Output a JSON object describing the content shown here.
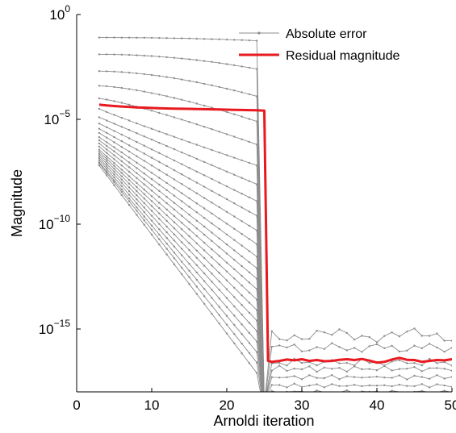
{
  "chart_data": {
    "type": "line",
    "title": "",
    "xlabel": "Arnoldi iteration",
    "ylabel": "Magnitude",
    "x_scale": "linear",
    "y_scale": "log",
    "xlim": [
      0,
      50
    ],
    "ylim": [
      1e-18,
      1
    ],
    "x_ticks": [
      0,
      10,
      20,
      30,
      40,
      50
    ],
    "x_tick_labels": [
      "0",
      "10",
      "20",
      "30",
      "40",
      "50"
    ],
    "y_ticks": [
      1e-15,
      1e-10,
      1e-05,
      1
    ],
    "y_tick_labels": [
      {
        "base": "10",
        "exponent": "−15"
      },
      {
        "base": "10",
        "exponent": "−10"
      },
      {
        "base": "10",
        "exponent": "−5"
      },
      {
        "base": "10",
        "exponent": "0"
      }
    ],
    "grid": false,
    "legend": {
      "position": "top-right",
      "entries": [
        {
          "label": "Absolute error",
          "color": "#8c8c8c",
          "marker": "dot"
        },
        {
          "label": "Residual magnitude",
          "color": "#e8191f",
          "marker": "none"
        }
      ]
    },
    "series": [
      {
        "name": "Residual magnitude",
        "color": "#e8191f",
        "x": [
          3,
          4,
          5,
          6,
          7,
          8,
          9,
          10,
          11,
          12,
          13,
          14,
          15,
          16,
          17,
          18,
          19,
          20,
          21,
          22,
          23,
          24,
          25,
          25.5,
          26,
          27,
          28,
          29,
          30,
          31,
          32,
          33,
          34,
          35,
          36,
          37,
          38,
          39,
          40,
          41,
          42,
          43,
          44,
          45,
          46,
          47,
          48,
          49,
          50
        ],
        "y": [
          5e-05,
          4.6e-05,
          4.3e-05,
          4.1e-05,
          3.9e-05,
          3.7e-05,
          3.6e-05,
          3.5e-05,
          3.4e-05,
          3.3e-05,
          3.25e-05,
          3.2e-05,
          3.15e-05,
          3.1e-05,
          3.05e-05,
          3e-05,
          2.95e-05,
          2.9e-05,
          2.85e-05,
          2.8e-05,
          2.75e-05,
          2.7e-05,
          2.6e-05,
          3e-17,
          2.7e-17,
          3e-17,
          3.5e-17,
          3.2e-17,
          3.6e-17,
          3e-17,
          3.3e-17,
          2.9e-17,
          3e-17,
          3.4e-17,
          3.6e-17,
          3.3e-17,
          3.7e-17,
          3.1e-17,
          2.5e-17,
          2.7e-17,
          3.5e-17,
          4.2e-17,
          3.4e-17,
          3.3e-17,
          2.7e-17,
          3e-17,
          3.3e-17,
          3.2e-17,
          3.6e-17
        ]
      }
    ],
    "error_curves": {
      "name": "Absolute error",
      "color": "#8c8c8c",
      "x_start": 3,
      "x_drop": 25,
      "x_end": 50,
      "log10_start": [
        -1.1,
        -1.9,
        -2.7,
        -3.4,
        -4.0,
        -4.5,
        -4.9,
        -5.2,
        -5.45,
        -5.65,
        -5.85,
        -6.0,
        -6.15,
        -6.3,
        -6.45,
        -6.55,
        -6.65,
        -6.75,
        -6.85,
        -6.95,
        -7.05,
        -7.1,
        -7.2
      ],
      "log10_end": [
        -1.25,
        -2.6,
        -3.9,
        -5.1,
        -6.2,
        -7.2,
        -8.1,
        -8.9,
        -9.6,
        -10.3,
        -10.95,
        -11.55,
        -12.1,
        -12.6,
        -13.1,
        -13.6,
        -14.1,
        -14.6,
        -15.1,
        -15.6,
        -16.1,
        -16.6,
        -17.1
      ],
      "after_drop_log10": [
        -15.3,
        -15.9,
        -16.6,
        -16.9,
        -17.3,
        -17.7,
        -18.0,
        -18.2
      ],
      "after_drop_bumps": [
        0.35,
        0.25,
        0.2,
        0.15,
        0.12,
        0.1,
        0.08,
        0.05
      ]
    }
  }
}
